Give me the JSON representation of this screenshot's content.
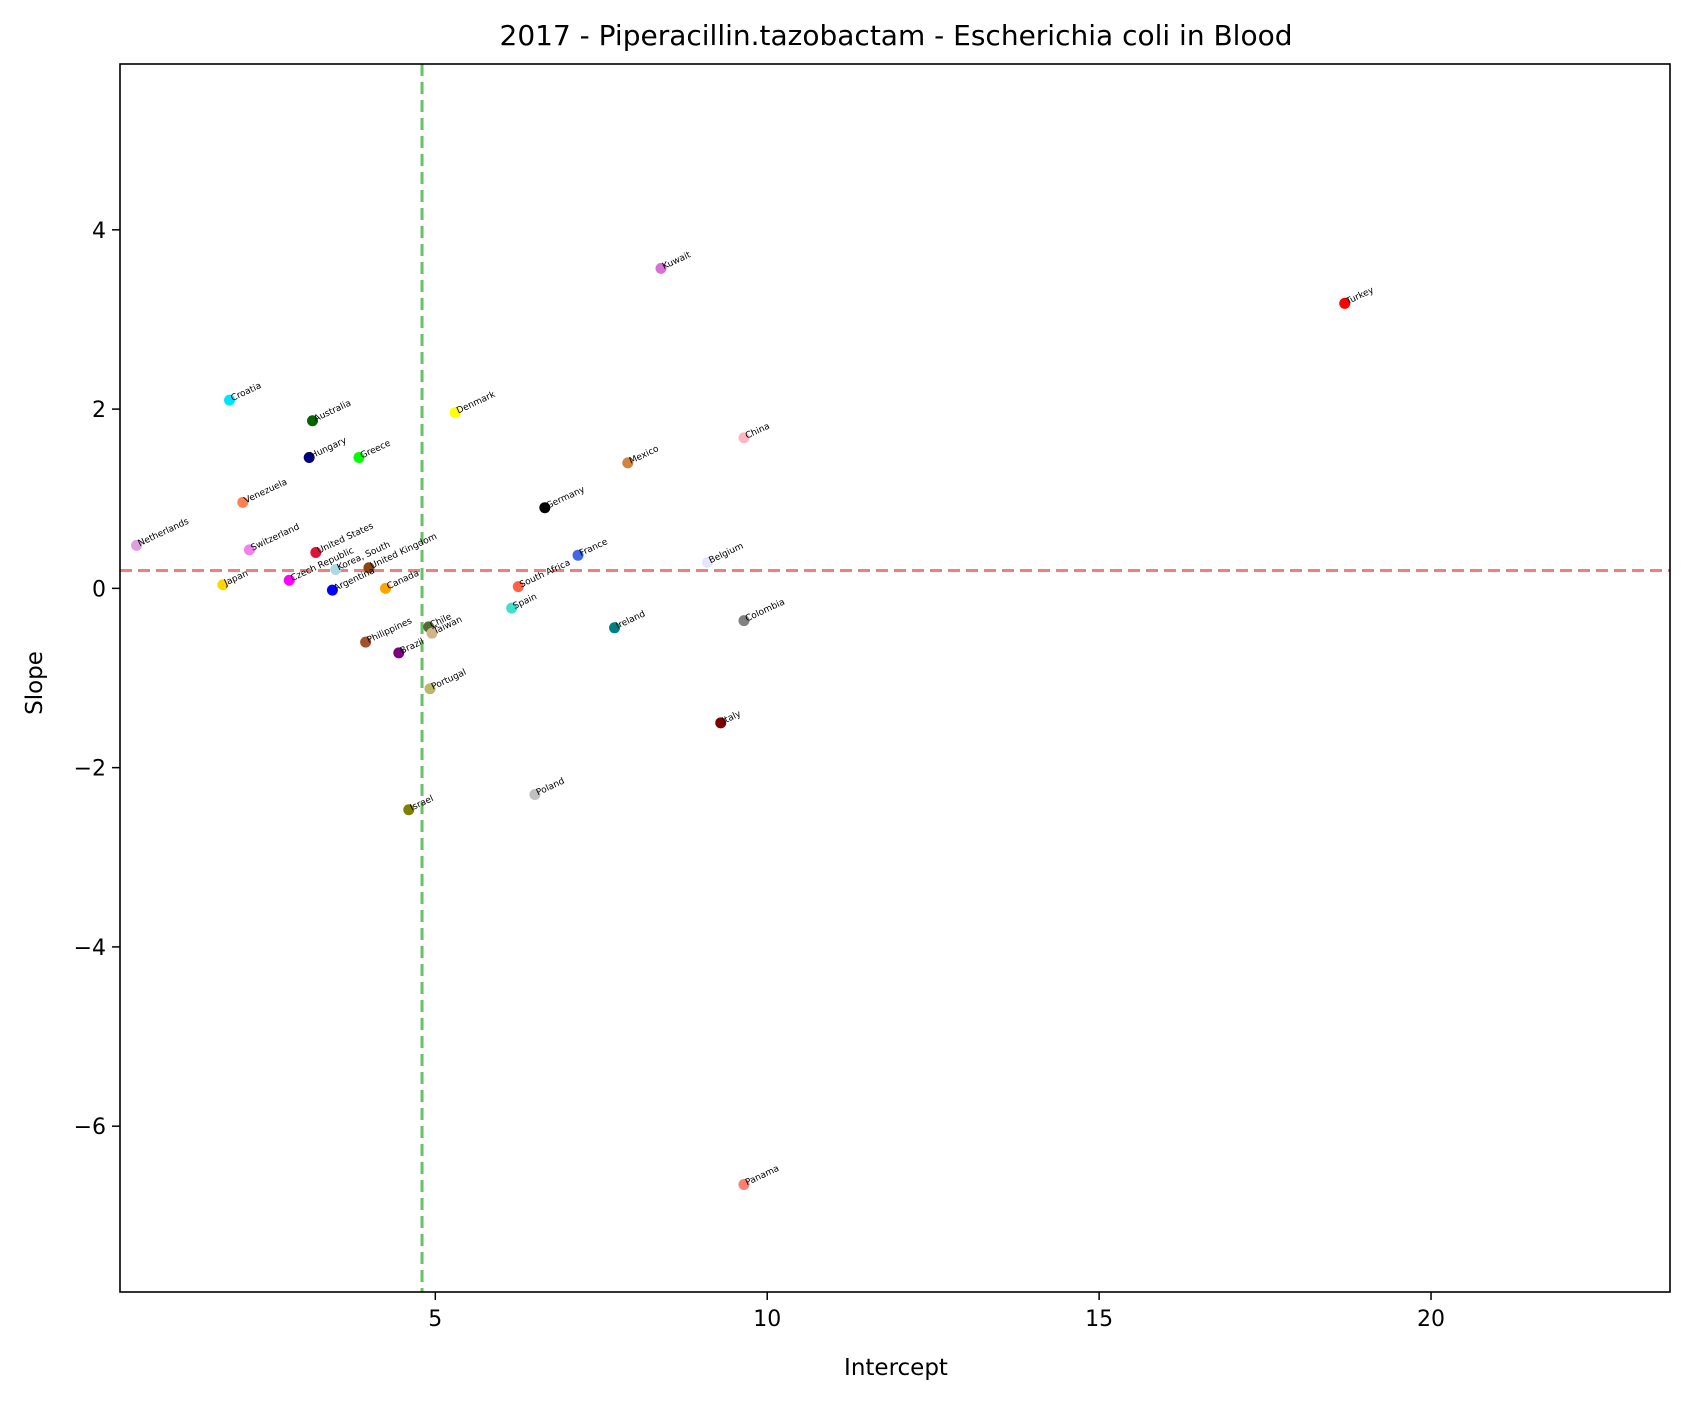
{
  "chart_data": {
    "type": "scatter",
    "title": "2017 - Piperacillin.tazobactam - Escherichia coli in Blood",
    "xlabel": "Intercept",
    "ylabel": "Slope",
    "xlim": [
      0.25,
      23.6
    ],
    "ylim": [
      -7.85,
      5.85
    ],
    "xticks": [
      5,
      10,
      15,
      20
    ],
    "yticks": [
      -6,
      -4,
      -2,
      0,
      2,
      4
    ],
    "x_tick_labels": [
      "5",
      "10",
      "15",
      "20"
    ],
    "y_tick_labels": [
      "−6",
      "−4",
      "−2",
      "0",
      "2",
      "4"
    ],
    "reference_lines": [
      {
        "orientation": "horizontal",
        "value": 0.2,
        "color": "#f08080",
        "style": "dashed"
      },
      {
        "orientation": "vertical",
        "value": 4.8,
        "color": "#6abf69",
        "style": "dashed"
      }
    ],
    "points": [
      {
        "label": "Netherlands",
        "x": 0.5,
        "y": 0.48,
        "color": "#dda0dd"
      },
      {
        "label": "Croatia",
        "x": 1.9,
        "y": 2.1,
        "color": "#00e5ff"
      },
      {
        "label": "Japan",
        "x": 1.8,
        "y": 0.04,
        "color": "#ffd700"
      },
      {
        "label": "Venezuela",
        "x": 2.1,
        "y": 0.96,
        "color": "#ff7f50"
      },
      {
        "label": "Switzerland",
        "x": 2.2,
        "y": 0.43,
        "color": "#ee82ee"
      },
      {
        "label": "Czech Republic",
        "x": 2.8,
        "y": 0.09,
        "color": "#ff00ff"
      },
      {
        "label": "Australia",
        "x": 3.15,
        "y": 1.87,
        "color": "#006400"
      },
      {
        "label": "Hungary",
        "x": 3.1,
        "y": 1.46,
        "color": "#000080"
      },
      {
        "label": "United States",
        "x": 3.2,
        "y": 0.4,
        "color": "#dc143c"
      },
      {
        "label": "Korea, South",
        "x": 3.5,
        "y": 0.21,
        "color": "#add8e6"
      },
      {
        "label": "Argentina",
        "x": 3.45,
        "y": -0.02,
        "color": "#0000ff"
      },
      {
        "label": "Greece",
        "x": 3.85,
        "y": 1.46,
        "color": "#00ff00"
      },
      {
        "label": "United Kingdom",
        "x": 4.0,
        "y": 0.23,
        "color": "#8b4513"
      },
      {
        "label": "Canada",
        "x": 4.25,
        "y": 0.0,
        "color": "#ffa500"
      },
      {
        "label": "Philippines",
        "x": 3.95,
        "y": -0.6,
        "color": "#a0522d"
      },
      {
        "label": "Brazil",
        "x": 4.45,
        "y": -0.72,
        "color": "#800080"
      },
      {
        "label": "Chile",
        "x": 4.9,
        "y": -0.43,
        "color": "#556b2f"
      },
      {
        "label": "Taiwan",
        "x": 4.95,
        "y": -0.5,
        "color": "#d2b48c"
      },
      {
        "label": "Portugal",
        "x": 4.92,
        "y": -1.12,
        "color": "#bdb76b"
      },
      {
        "label": "Israel",
        "x": 4.6,
        "y": -2.47,
        "color": "#808000"
      },
      {
        "label": "Denmark",
        "x": 5.3,
        "y": 1.96,
        "color": "#ffff00"
      },
      {
        "label": "South Africa",
        "x": 6.25,
        "y": 0.02,
        "color": "#ff6347"
      },
      {
        "label": "Spain",
        "x": 6.15,
        "y": -0.22,
        "color": "#40e0d0"
      },
      {
        "label": "Germany",
        "x": 6.65,
        "y": 0.9,
        "color": "#000000"
      },
      {
        "label": "Poland",
        "x": 6.5,
        "y": -2.3,
        "color": "#c0c0c0"
      },
      {
        "label": "France",
        "x": 7.15,
        "y": 0.37,
        "color": "#4169e1"
      },
      {
        "label": "Ireland",
        "x": 7.7,
        "y": -0.44,
        "color": "#008080"
      },
      {
        "label": "Mexico",
        "x": 7.9,
        "y": 1.4,
        "color": "#cd853f"
      },
      {
        "label": "Kuwait",
        "x": 8.4,
        "y": 3.57,
        "color": "#da70d6"
      },
      {
        "label": "Belgium",
        "x": 9.1,
        "y": 0.29,
        "color": "#e6e6fa"
      },
      {
        "label": "Italy",
        "x": 9.3,
        "y": -1.5,
        "color": "#800000"
      },
      {
        "label": "China",
        "x": 9.65,
        "y": 1.68,
        "color": "#ffb6c1"
      },
      {
        "label": "Colombia",
        "x": 9.65,
        "y": -0.36,
        "color": "#808080"
      },
      {
        "label": "Panama",
        "x": 9.65,
        "y": -6.65,
        "color": "#fa8072"
      },
      {
        "label": "Turkey",
        "x": 18.7,
        "y": 3.18,
        "color": "#ff0000"
      }
    ]
  }
}
